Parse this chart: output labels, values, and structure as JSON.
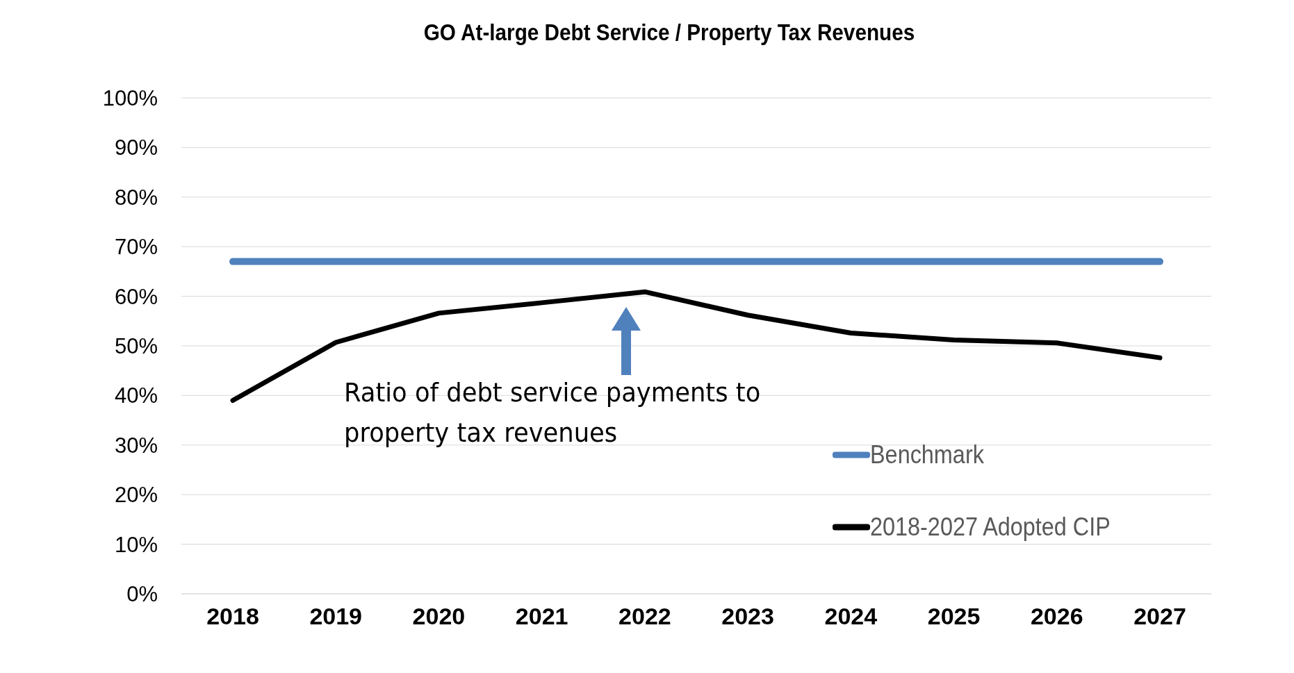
{
  "chart_data": {
    "type": "line",
    "title": "GO At-large Debt Service / Property Tax Revenues",
    "categories": [
      "2018",
      "2019",
      "2020",
      "2021",
      "2022",
      "2023",
      "2024",
      "2025",
      "2026",
      "2027"
    ],
    "series": [
      {
        "name": "Benchmark",
        "color": "#4f81bd",
        "values": [
          67,
          67,
          67,
          67,
          67,
          67,
          67,
          67,
          67,
          67
        ]
      },
      {
        "name": "2018-2027 Adopted CIP",
        "color": "#000000",
        "values": [
          39,
          50.7,
          56.6,
          58.7,
          60.9,
          56.2,
          52.6,
          51.2,
          50.6,
          47.6
        ]
      }
    ],
    "ylim": [
      0,
      100
    ],
    "yticks": [
      {
        "value": 0,
        "label": "0%"
      },
      {
        "value": 10,
        "label": "10%"
      },
      {
        "value": 20,
        "label": "20%"
      },
      {
        "value": 30,
        "label": "30%"
      },
      {
        "value": 40,
        "label": "40%"
      },
      {
        "value": 50,
        "label": "50%"
      },
      {
        "value": 60,
        "label": "60%"
      },
      {
        "value": 70,
        "label": "70%"
      },
      {
        "value": 80,
        "label": "80%"
      },
      {
        "value": 90,
        "label": "90%"
      },
      {
        "value": 100,
        "label": "100%"
      }
    ],
    "grid": "y",
    "legend": "bottom right",
    "marker": "none",
    "line_style": "solid",
    "annotations": [
      "Ratio of debt service payments to property tax revenues"
    ]
  }
}
